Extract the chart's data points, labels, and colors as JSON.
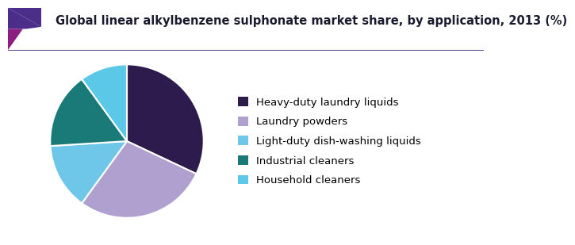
{
  "title": "Global linear alkylbenzene sulphonate market share, by application, 2013 (%)",
  "labels": [
    "Heavy-duty laundry liquids",
    "Laundry powders",
    "Light-duty dish-washing liquids",
    "Industrial cleaners",
    "Household cleaners"
  ],
  "values": [
    32,
    28,
    14,
    16,
    10
  ],
  "colors": [
    "#2d1b4e",
    "#b0a0d0",
    "#6ec6e8",
    "#1a7a78",
    "#5bc8e8"
  ],
  "startangle": 90,
  "background_color": "#ffffff",
  "title_color": "#1a1a2e",
  "title_fontsize": 10.5,
  "legend_fontsize": 9.5,
  "wedge_edge_color": "#ffffff",
  "wedge_linewidth": 1.5,
  "accent_purple": "#4b2d8a",
  "accent_magenta": "#8b2080",
  "line_color": "#6a5a9a"
}
